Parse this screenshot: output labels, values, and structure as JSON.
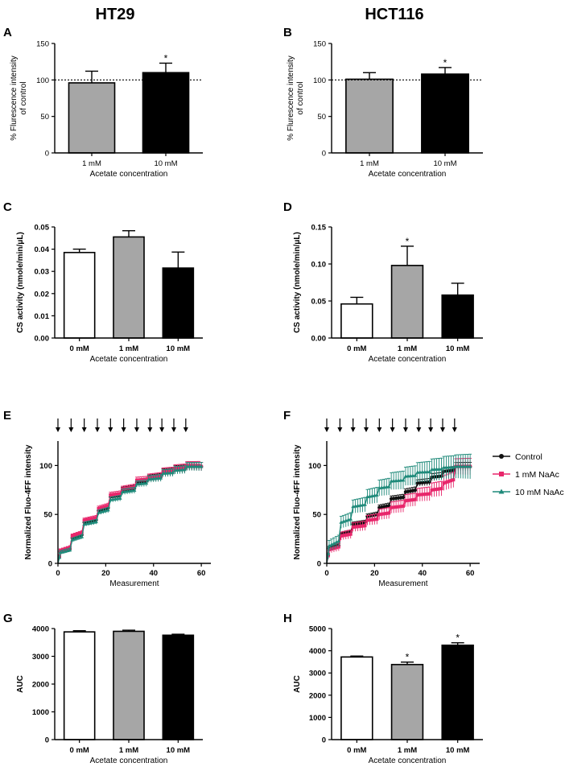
{
  "titles": {
    "left": "HT29",
    "right": "HCT116"
  },
  "colors": {
    "control": "#111111",
    "naac1": "#e8266b",
    "naac10": "#1f8a7a",
    "gray": "#a6a6a6",
    "black": "#000000",
    "white": "#ffffff"
  },
  "chart_data": [
    {
      "id": "A",
      "type": "bar",
      "letter": "A",
      "ylabel": "% Flurescence intensity of control",
      "ylabel_lines": [
        "% Flurescence intensity",
        "of control"
      ],
      "xlabel": "Acetate concentration",
      "categories": [
        "1 mM",
        "10 mM"
      ],
      "values": [
        96,
        110
      ],
      "errors": [
        16,
        13
      ],
      "fills": [
        "#a6a6a6",
        "#000000"
      ],
      "significance": [
        "",
        "*"
      ],
      "ylim": [
        0,
        150
      ],
      "yticks": [
        0,
        50,
        100,
        150
      ],
      "ytick_labels": [
        "0",
        "50",
        "100",
        "150"
      ],
      "reference_line": 100,
      "bold_ticks": false
    },
    {
      "id": "B",
      "type": "bar",
      "letter": "B",
      "ylabel": "% Flurescence intensity of control",
      "ylabel_lines": [
        "% Flurescence intensity",
        "of control"
      ],
      "xlabel": "Acetate concentration",
      "categories": [
        "1 mM",
        "10 mM"
      ],
      "values": [
        101,
        108
      ],
      "errors": [
        9,
        9
      ],
      "fills": [
        "#a6a6a6",
        "#000000"
      ],
      "significance": [
        "",
        "*"
      ],
      "ylim": [
        0,
        150
      ],
      "yticks": [
        0,
        50,
        100,
        150
      ],
      "ytick_labels": [
        "0",
        "50",
        "100",
        "150"
      ],
      "reference_line": 100,
      "bold_ticks": false
    },
    {
      "id": "C",
      "type": "bar",
      "letter": "C",
      "ylabel": "CS activity (nmole/min/μL)",
      "ylabel_lines": [
        "CS activity (nmole/min/μL)"
      ],
      "xlabel": "Acetate concentration",
      "categories": [
        "0 mM",
        "1 mM",
        "10 mM"
      ],
      "values": [
        0.0385,
        0.0455,
        0.0315
      ],
      "errors": [
        0.0015,
        0.0028,
        0.0072
      ],
      "fills": [
        "#ffffff",
        "#a6a6a6",
        "#000000"
      ],
      "significance": [
        "",
        "",
        ""
      ],
      "ylim": [
        0,
        0.05
      ],
      "yticks": [
        0,
        0.01,
        0.02,
        0.03,
        0.04,
        0.05
      ],
      "ytick_labels": [
        "0.00",
        "0.01",
        "0.02",
        "0.03",
        "0.04",
        "0.05"
      ],
      "reference_line": null,
      "bold_ticks": true
    },
    {
      "id": "D",
      "type": "bar",
      "letter": "D",
      "ylabel": "CS activity (nmole/min/μL)",
      "ylabel_lines": [
        "CS activity (nmole/min/μL)"
      ],
      "xlabel": "Acetate concentration",
      "categories": [
        "0 mM",
        "1 mM",
        "10 mM"
      ],
      "values": [
        0.046,
        0.098,
        0.058
      ],
      "errors": [
        0.009,
        0.026,
        0.016
      ],
      "fills": [
        "#ffffff",
        "#a6a6a6",
        "#000000"
      ],
      "significance": [
        "",
        "*",
        ""
      ],
      "ylim": [
        0,
        0.15
      ],
      "yticks": [
        0,
        0.05,
        0.1,
        0.15
      ],
      "ytick_labels": [
        "0.00",
        "0.05",
        "0.10",
        "0.15"
      ],
      "reference_line": null,
      "bold_ticks": true
    },
    {
      "id": "E",
      "type": "line",
      "letter": "E",
      "ylabel": "Normalized Fluo-4FF intensity",
      "xlabel": "Measurement",
      "xlim": [
        0,
        64
      ],
      "xticks": [
        0,
        20,
        40,
        60
      ],
      "xtick_labels": [
        "0",
        "20",
        "40",
        "60"
      ],
      "ylim": [
        0,
        125
      ],
      "yticks": [
        0,
        50,
        100
      ],
      "ytick_labels": [
        "0",
        "50",
        "100"
      ],
      "arrows_x": [
        0,
        5.5,
        11,
        16.5,
        22,
        27.5,
        33,
        38.5,
        43.5,
        48.5,
        53.5
      ],
      "step_x": [
        1,
        6,
        11,
        17,
        22,
        27,
        33,
        38,
        44,
        49,
        54,
        60
      ],
      "series": [
        {
          "name": "Control",
          "color": "#111111",
          "marker": "circle",
          "levels": [
            12,
            26,
            42,
            54,
            68,
            75,
            83,
            87,
            93,
            96,
            99
          ],
          "err": 3
        },
        {
          "name": "1 mM NaAc",
          "color": "#e8266b",
          "marker": "square",
          "levels": [
            13,
            28,
            44,
            56,
            70,
            76,
            85,
            88,
            94,
            97,
            100
          ],
          "err": 3
        },
        {
          "name": "10 mM NaAc",
          "color": "#1f8a7a",
          "marker": "triangle",
          "levels": [
            11,
            24,
            40,
            52,
            65,
            73,
            81,
            86,
            92,
            95,
            99
          ],
          "err": 3
        }
      ],
      "legend": false
    },
    {
      "id": "F",
      "type": "line",
      "letter": "F",
      "ylabel": "Normalized Fluo-4FF intensity",
      "xlabel": "Measurement",
      "xlim": [
        0,
        64
      ],
      "xticks": [
        0,
        20,
        40,
        60
      ],
      "xtick_labels": [
        "0",
        "20",
        "40",
        "60"
      ],
      "ylim": [
        0,
        125
      ],
      "yticks": [
        0,
        50,
        100
      ],
      "ytick_labels": [
        "0",
        "50",
        "100"
      ],
      "arrows_x": [
        0,
        5.5,
        11,
        16.5,
        22,
        27.5,
        33,
        38.5,
        43.5,
        48.5,
        53.5
      ],
      "step_x": [
        1,
        6,
        11,
        17,
        22,
        27,
        33,
        38,
        44,
        49,
        54,
        60
      ],
      "series": [
        {
          "name": "Control",
          "color": "#111111",
          "marker": "circle",
          "levels": [
            15,
            30,
            40,
            48,
            57,
            66,
            73,
            82,
            88,
            94,
            99
          ],
          "err": 3
        },
        {
          "name": "1 mM NaAc",
          "color": "#e8266b",
          "marker": "square",
          "levels": [
            14,
            28,
            37,
            44,
            50,
            57,
            64,
            70,
            75,
            82,
            99
          ],
          "err": 6
        },
        {
          "name": "10 mM NaAc",
          "color": "#1f8a7a",
          "marker": "triangle",
          "levels": [
            18,
            42,
            58,
            68,
            77,
            84,
            89,
            93,
            96,
            98,
            99
          ],
          "err": 9
        }
      ],
      "legend": true
    },
    {
      "id": "G",
      "type": "bar",
      "letter": "G",
      "ylabel": "AUC",
      "ylabel_lines": [
        "AUC"
      ],
      "xlabel": "Acetate concentration",
      "categories": [
        "0 mM",
        "1 mM",
        "10 mM"
      ],
      "values": [
        3880,
        3900,
        3760
      ],
      "errors": [
        40,
        40,
        35
      ],
      "fills": [
        "#ffffff",
        "#a6a6a6",
        "#000000"
      ],
      "significance": [
        "",
        "",
        ""
      ],
      "ylim": [
        0,
        4000
      ],
      "yticks": [
        0,
        1000,
        2000,
        3000,
        4000
      ],
      "ytick_labels": [
        "0",
        "1000",
        "2000",
        "3000",
        "4000"
      ],
      "reference_line": null,
      "bold_ticks": true
    },
    {
      "id": "H",
      "type": "bar",
      "letter": "H",
      "ylabel": "AUC",
      "ylabel_lines": [
        "AUC"
      ],
      "xlabel": "Acetate concentration",
      "categories": [
        "0 mM",
        "1 mM",
        "10 mM"
      ],
      "values": [
        3720,
        3380,
        4250
      ],
      "errors": [
        40,
        110,
        110
      ],
      "fills": [
        "#ffffff",
        "#a6a6a6",
        "#000000"
      ],
      "significance": [
        "",
        "*",
        "*"
      ],
      "ylim": [
        0,
        5000
      ],
      "yticks": [
        0,
        1000,
        2000,
        3000,
        4000,
        5000
      ],
      "ytick_labels": [
        "0",
        "1000",
        "2000",
        "3000",
        "4000",
        "5000"
      ],
      "reference_line": null,
      "bold_ticks": true
    }
  ]
}
